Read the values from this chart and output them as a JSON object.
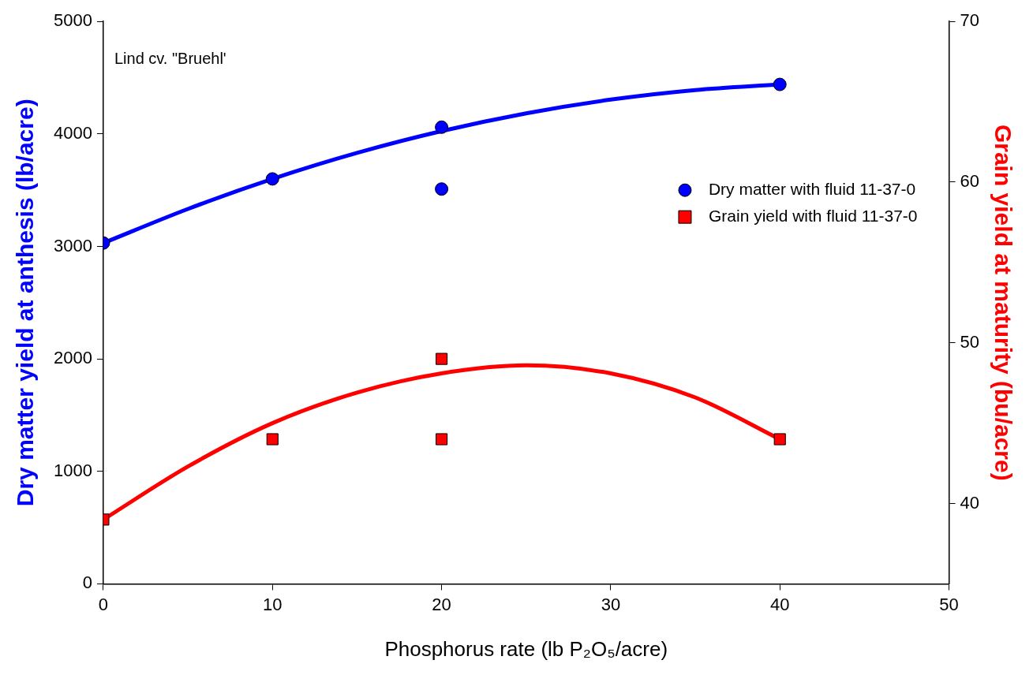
{
  "chart_data": {
    "type": "scatter",
    "xlabel": "Phosphorus rate (lb P₂O₅/acre)",
    "ylabel": "Dry matter yield at anthesis (lb/acre)",
    "y2label": "Grain yield at maturity (bu/acre)",
    "xlim": [
      0,
      50
    ],
    "xticks": [
      0,
      10,
      20,
      30,
      40,
      50
    ],
    "ylim": [
      0,
      5000
    ],
    "yticks": [
      0,
      1000,
      2000,
      3000,
      4000,
      5000
    ],
    "y2lim": [
      35,
      70
    ],
    "y2ticks": [
      40,
      50,
      60,
      70
    ],
    "grid": false,
    "legend": "right",
    "annotations": [
      "Lind cv. \"Bruehl'"
    ],
    "series": [
      {
        "name": "Dry matter with fluid 11-37-0",
        "color": "#0000ff",
        "marker": "circle",
        "x": [
          0,
          10,
          20,
          20,
          40
        ],
        "values": [
          3030,
          3600,
          4060,
          3510,
          4440
        ]
      },
      {
        "name": "Grain yield with fluid 11-37-0",
        "color": "#ff0000",
        "marker": "square",
        "axis": "y2",
        "x": [
          0,
          10,
          20,
          20,
          40
        ],
        "values": [
          39,
          44,
          49,
          44,
          44
        ]
      },
      {
        "type": "line",
        "color": "#0000ff",
        "marker": "none",
        "x": [
          0,
          5,
          10,
          15,
          20,
          25,
          30,
          35,
          40
        ],
        "values": [
          3030,
          3333,
          3600,
          3831,
          4025,
          4183,
          4305,
          4390,
          4440
        ]
      },
      {
        "type": "line",
        "color": "#ff0000",
        "marker": "none",
        "axis": "y2",
        "x": [
          0,
          5,
          10,
          15,
          20,
          25,
          30,
          35,
          40
        ],
        "values": [
          39,
          42.3,
          45,
          46.9,
          48.1,
          48.6,
          48.1,
          46.6,
          44
        ]
      }
    ]
  }
}
